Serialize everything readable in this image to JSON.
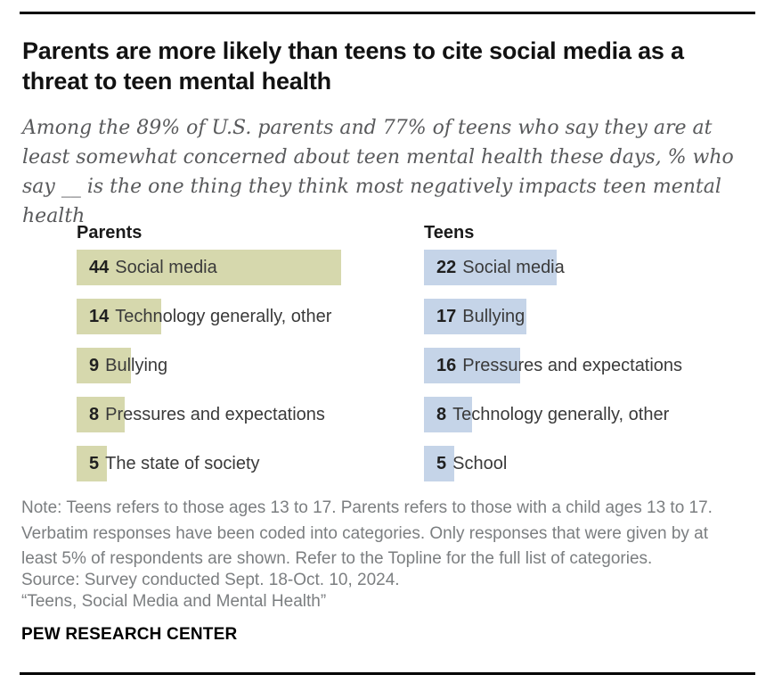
{
  "header": {
    "title": "Parents are more likely than teens to cite social media as a threat to teen mental health",
    "subtitle": "Among the 89% of U.S. parents and 77% of teens who say they are at least somewhat concerned about teen mental health these days, % who say __ is the one thing they think most negatively impacts teen mental health"
  },
  "chart_data": {
    "type": "bar",
    "orientation": "horizontal",
    "title": "Parents are more likely than teens to cite social media as a threat to teen mental health",
    "subtitle": "Among the 89% of U.S. parents and 77% of teens who say they are at least somewhat concerned about teen mental health these days, % who say __ is the one thing they think most negatively impacts teen mental health",
    "unit": "% of respondents",
    "xlim": [
      0,
      50
    ],
    "grid": false,
    "value_labels": "inside-start",
    "legend": "column headers",
    "series": [
      {
        "name": "Parents",
        "color": "#d6d8ad",
        "data": [
          {
            "label": "Social media",
            "value": 44
          },
          {
            "label": "Technology generally, other",
            "value": 14
          },
          {
            "label": "Bullying",
            "value": 9
          },
          {
            "label": "Pressures and expectations",
            "value": 8
          },
          {
            "label": "The state of society",
            "value": 5
          }
        ]
      },
      {
        "name": "Teens",
        "color": "#c5d4e8",
        "data": [
          {
            "label": "Social media",
            "value": 22
          },
          {
            "label": "Bullying",
            "value": 17
          },
          {
            "label": "Pressures and expectations",
            "value": 16
          },
          {
            "label": "Technology generally, other",
            "value": 8
          },
          {
            "label": "School",
            "value": 5
          }
        ]
      }
    ]
  },
  "notes": {
    "note": "Note: Teens refers to those ages 13 to 17. Parents refers to those with a child ages 13 to 17. Verbatim responses have been coded into categories. Only responses that were given by at least 5% of respondents are shown. Refer to the Topline for the full list of categories.",
    "source": "Source: Survey conducted Sept. 18-Oct. 10, 2024.",
    "quote": "“Teens, Social Media and Mental Health”"
  },
  "footer": {
    "brand": "PEW RESEARCH CENTER"
  }
}
